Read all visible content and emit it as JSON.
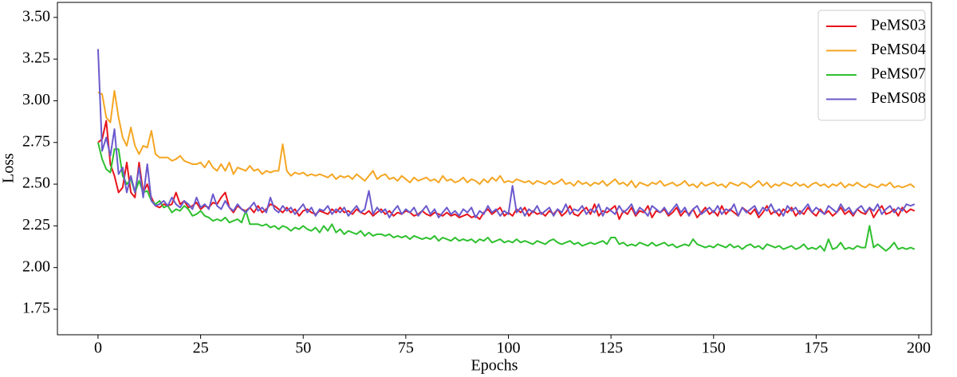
{
  "chart_data": {
    "type": "line",
    "xlabel": "Epochs",
    "ylabel": "Loss",
    "x": [
      0,
      1,
      2,
      3,
      4,
      5,
      6,
      7,
      8,
      9,
      10,
      11,
      12,
      13,
      14,
      15,
      16,
      17,
      18,
      19,
      20,
      21,
      22,
      23,
      24,
      25,
      26,
      27,
      28,
      29,
      30,
      31,
      32,
      33,
      34,
      35,
      36,
      37,
      38,
      39,
      40,
      41,
      42,
      43,
      44,
      45,
      46,
      47,
      48,
      49,
      50,
      51,
      52,
      53,
      54,
      55,
      56,
      57,
      58,
      59,
      60,
      61,
      62,
      63,
      64,
      65,
      66,
      67,
      68,
      69,
      70,
      71,
      72,
      73,
      74,
      75,
      76,
      77,
      78,
      79,
      80,
      81,
      82,
      83,
      84,
      85,
      86,
      87,
      88,
      89,
      90,
      91,
      92,
      93,
      94,
      95,
      96,
      97,
      98,
      99,
      100,
      101,
      102,
      103,
      104,
      105,
      106,
      107,
      108,
      109,
      110,
      111,
      112,
      113,
      114,
      115,
      116,
      117,
      118,
      119,
      120,
      121,
      122,
      123,
      124,
      125,
      126,
      127,
      128,
      129,
      130,
      131,
      132,
      133,
      134,
      135,
      136,
      137,
      138,
      139,
      140,
      141,
      142,
      143,
      144,
      145,
      146,
      147,
      148,
      149,
      150,
      151,
      152,
      153,
      154,
      155,
      156,
      157,
      158,
      159,
      160,
      161,
      162,
      163,
      164,
      165,
      166,
      167,
      168,
      169,
      170,
      171,
      172,
      173,
      174,
      175,
      176,
      177,
      178,
      179,
      180,
      181,
      182,
      183,
      184,
      185,
      186,
      187,
      188,
      189,
      190,
      191,
      192,
      193,
      194,
      195,
      196,
      197,
      198,
      199
    ],
    "series": [
      {
        "name": "PeMS03",
        "color": "#e8141b",
        "values": [
          2.75,
          2.77,
          2.88,
          2.62,
          2.55,
          2.45,
          2.48,
          2.63,
          2.45,
          2.42,
          2.63,
          2.45,
          2.5,
          2.42,
          2.37,
          2.36,
          2.38,
          2.37,
          2.38,
          2.45,
          2.38,
          2.4,
          2.36,
          2.37,
          2.39,
          2.35,
          2.37,
          2.36,
          2.39,
          2.38,
          2.42,
          2.45,
          2.36,
          2.33,
          2.37,
          2.35,
          2.34,
          2.36,
          2.33,
          2.37,
          2.33,
          2.35,
          2.38,
          2.37,
          2.35,
          2.33,
          2.36,
          2.33,
          2.35,
          2.31,
          2.34,
          2.35,
          2.33,
          2.32,
          2.34,
          2.33,
          2.32,
          2.35,
          2.33,
          2.36,
          2.33,
          2.34,
          2.32,
          2.35,
          2.33,
          2.32,
          2.34,
          2.31,
          2.33,
          2.35,
          2.32,
          2.34,
          2.31,
          2.33,
          2.32,
          2.34,
          2.33,
          2.31,
          2.32,
          2.34,
          2.32,
          2.31,
          2.33,
          2.32,
          2.31,
          2.33,
          2.31,
          2.32,
          2.3,
          2.31,
          2.32,
          2.3,
          2.31,
          2.29,
          2.33,
          2.35,
          2.32,
          2.34,
          2.36,
          2.31,
          2.33,
          2.31,
          2.35,
          2.33,
          2.36,
          2.31,
          2.34,
          2.32,
          2.33,
          2.31,
          2.34,
          2.32,
          2.35,
          2.31,
          2.33,
          2.37,
          2.32,
          2.31,
          2.34,
          2.36,
          2.32,
          2.38,
          2.31,
          2.34,
          2.33,
          2.35,
          2.37,
          2.29,
          2.34,
          2.32,
          2.36,
          2.31,
          2.34,
          2.33,
          2.37,
          2.3,
          2.34,
          2.33,
          2.35,
          2.31,
          2.33,
          2.36,
          2.31,
          2.34,
          2.32,
          2.35,
          2.3,
          2.33,
          2.36,
          2.32,
          2.34,
          2.31,
          2.37,
          2.32,
          2.35,
          2.33,
          2.31,
          2.36,
          2.34,
          2.32,
          2.35,
          2.3,
          2.33,
          2.37,
          2.32,
          2.34,
          2.31,
          2.35,
          2.33,
          2.36,
          2.31,
          2.34,
          2.32,
          2.36,
          2.33,
          2.31,
          2.35,
          2.32,
          2.34,
          2.31,
          2.33,
          2.36,
          2.32,
          2.34,
          2.31,
          2.35,
          2.33,
          2.32,
          2.36,
          2.3,
          2.34,
          2.37,
          2.32,
          2.33,
          2.35,
          2.31,
          2.36,
          2.33,
          2.35,
          2.34
        ]
      },
      {
        "name": "PeMS04",
        "color": "#f5a623",
        "values": [
          3.05,
          3.04,
          2.9,
          2.87,
          3.06,
          2.9,
          2.78,
          2.73,
          2.84,
          2.73,
          2.68,
          2.73,
          2.72,
          2.82,
          2.68,
          2.66,
          2.66,
          2.66,
          2.64,
          2.65,
          2.67,
          2.64,
          2.63,
          2.62,
          2.62,
          2.63,
          2.6,
          2.64,
          2.6,
          2.58,
          2.62,
          2.58,
          2.63,
          2.56,
          2.6,
          2.59,
          2.58,
          2.61,
          2.58,
          2.59,
          2.56,
          2.58,
          2.57,
          2.58,
          2.58,
          2.74,
          2.58,
          2.55,
          2.57,
          2.56,
          2.57,
          2.55,
          2.56,
          2.55,
          2.56,
          2.55,
          2.54,
          2.56,
          2.53,
          2.55,
          2.54,
          2.55,
          2.53,
          2.56,
          2.54,
          2.52,
          2.55,
          2.58,
          2.53,
          2.55,
          2.56,
          2.53,
          2.54,
          2.52,
          2.55,
          2.53,
          2.51,
          2.54,
          2.52,
          2.53,
          2.54,
          2.52,
          2.53,
          2.51,
          2.55,
          2.52,
          2.53,
          2.51,
          2.52,
          2.54,
          2.51,
          2.53,
          2.52,
          2.5,
          2.53,
          2.51,
          2.54,
          2.52,
          2.55,
          2.51,
          2.52,
          2.51,
          2.53,
          2.52,
          2.51,
          2.52,
          2.5,
          2.52,
          2.51,
          2.5,
          2.52,
          2.5,
          2.51,
          2.53,
          2.5,
          2.51,
          2.49,
          2.52,
          2.5,
          2.51,
          2.49,
          2.51,
          2.5,
          2.52,
          2.49,
          2.51,
          2.53,
          2.5,
          2.51,
          2.49,
          2.52,
          2.48,
          2.51,
          2.5,
          2.49,
          2.51,
          2.5,
          2.52,
          2.49,
          2.5,
          2.51,
          2.49,
          2.5,
          2.52,
          2.49,
          2.5,
          2.48,
          2.51,
          2.49,
          2.5,
          2.51,
          2.49,
          2.5,
          2.48,
          2.51,
          2.5,
          2.49,
          2.51,
          2.5,
          2.48,
          2.5,
          2.52,
          2.49,
          2.51,
          2.48,
          2.5,
          2.49,
          2.51,
          2.5,
          2.49,
          2.51,
          2.49,
          2.5,
          2.48,
          2.5,
          2.51,
          2.49,
          2.5,
          2.48,
          2.5,
          2.49,
          2.51,
          2.48,
          2.5,
          2.49,
          2.51,
          2.49,
          2.48,
          2.5,
          2.49,
          2.48,
          2.5,
          2.49,
          2.51,
          2.48,
          2.49,
          2.48,
          2.49,
          2.5,
          2.48
        ]
      },
      {
        "name": "PeMS07",
        "color": "#2ec02e",
        "values": [
          2.75,
          2.65,
          2.59,
          2.57,
          2.71,
          2.71,
          2.55,
          2.5,
          2.53,
          2.45,
          2.52,
          2.45,
          2.46,
          2.4,
          2.38,
          2.4,
          2.36,
          2.37,
          2.33,
          2.35,
          2.34,
          2.37,
          2.35,
          2.31,
          2.32,
          2.34,
          2.31,
          2.3,
          2.28,
          2.29,
          2.28,
          2.3,
          2.27,
          2.28,
          2.29,
          2.27,
          2.34,
          2.26,
          2.26,
          2.26,
          2.25,
          2.26,
          2.24,
          2.25,
          2.23,
          2.25,
          2.24,
          2.22,
          2.24,
          2.23,
          2.25,
          2.23,
          2.22,
          2.24,
          2.21,
          2.25,
          2.22,
          2.26,
          2.21,
          2.23,
          2.2,
          2.22,
          2.21,
          2.2,
          2.22,
          2.19,
          2.21,
          2.19,
          2.2,
          2.2,
          2.19,
          2.2,
          2.18,
          2.19,
          2.18,
          2.19,
          2.17,
          2.19,
          2.18,
          2.17,
          2.18,
          2.17,
          2.19,
          2.16,
          2.18,
          2.17,
          2.16,
          2.18,
          2.16,
          2.17,
          2.16,
          2.17,
          2.15,
          2.17,
          2.16,
          2.18,
          2.15,
          2.16,
          2.17,
          2.15,
          2.16,
          2.15,
          2.17,
          2.15,
          2.16,
          2.15,
          2.14,
          2.16,
          2.15,
          2.14,
          2.16,
          2.17,
          2.15,
          2.14,
          2.15,
          2.16,
          2.14,
          2.15,
          2.13,
          2.14,
          2.15,
          2.14,
          2.15,
          2.16,
          2.14,
          2.18,
          2.18,
          2.14,
          2.15,
          2.13,
          2.14,
          2.13,
          2.15,
          2.14,
          2.13,
          2.15,
          2.13,
          2.14,
          2.15,
          2.13,
          2.14,
          2.12,
          2.13,
          2.14,
          2.13,
          2.17,
          2.14,
          2.13,
          2.12,
          2.13,
          2.12,
          2.14,
          2.13,
          2.12,
          2.14,
          2.12,
          2.13,
          2.11,
          2.13,
          2.14,
          2.12,
          2.13,
          2.11,
          2.14,
          2.13,
          2.12,
          2.13,
          2.11,
          2.12,
          2.13,
          2.11,
          2.12,
          2.14,
          2.11,
          2.12,
          2.11,
          2.13,
          2.1,
          2.17,
          2.11,
          2.12,
          2.15,
          2.11,
          2.12,
          2.11,
          2.13,
          2.12,
          2.12,
          2.25,
          2.12,
          2.14,
          2.12,
          2.1,
          2.12,
          2.15,
          2.11,
          2.12,
          2.11,
          2.12,
          2.11
        ]
      },
      {
        "name": "PeMS08",
        "color": "#6a5acd",
        "values": [
          3.31,
          2.7,
          2.78,
          2.67,
          2.83,
          2.56,
          2.6,
          2.45,
          2.55,
          2.45,
          2.6,
          2.42,
          2.62,
          2.4,
          2.37,
          2.38,
          2.4,
          2.37,
          2.42,
          2.38,
          2.36,
          2.4,
          2.38,
          2.35,
          2.42,
          2.36,
          2.38,
          2.35,
          2.44,
          2.37,
          2.35,
          2.4,
          2.36,
          2.34,
          2.38,
          2.35,
          2.33,
          2.36,
          2.39,
          2.34,
          2.36,
          2.33,
          2.42,
          2.35,
          2.33,
          2.37,
          2.34,
          2.36,
          2.32,
          2.35,
          2.38,
          2.33,
          2.36,
          2.31,
          2.35,
          2.34,
          2.37,
          2.32,
          2.35,
          2.33,
          2.36,
          2.31,
          2.34,
          2.37,
          2.33,
          2.35,
          2.46,
          2.32,
          2.36,
          2.33,
          2.35,
          2.3,
          2.34,
          2.37,
          2.32,
          2.35,
          2.33,
          2.36,
          2.31,
          2.34,
          2.37,
          2.32,
          2.35,
          2.3,
          2.33,
          2.36,
          2.32,
          2.34,
          2.31,
          2.35,
          2.33,
          2.36,
          2.3,
          2.34,
          2.32,
          2.37,
          2.33,
          2.35,
          2.31,
          2.34,
          2.32,
          2.49,
          2.33,
          2.36,
          2.31,
          2.35,
          2.33,
          2.37,
          2.32,
          2.34,
          2.36,
          2.31,
          2.35,
          2.33,
          2.38,
          2.32,
          2.35,
          2.34,
          2.37,
          2.32,
          2.35,
          2.33,
          2.38,
          2.31,
          2.36,
          2.34,
          2.32,
          2.37,
          2.33,
          2.35,
          2.38,
          2.32,
          2.36,
          2.34,
          2.31,
          2.37,
          2.35,
          2.33,
          2.36,
          2.32,
          2.35,
          2.38,
          2.33,
          2.36,
          2.31,
          2.35,
          2.37,
          2.32,
          2.34,
          2.36,
          2.33,
          2.37,
          2.32,
          2.35,
          2.34,
          2.38,
          2.31,
          2.36,
          2.33,
          2.35,
          2.37,
          2.32,
          2.36,
          2.34,
          2.38,
          2.33,
          2.35,
          2.31,
          2.37,
          2.34,
          2.36,
          2.32,
          2.35,
          2.38,
          2.33,
          2.36,
          2.34,
          2.32,
          2.37,
          2.35,
          2.33,
          2.38,
          2.34,
          2.36,
          2.32,
          2.35,
          2.37,
          2.33,
          2.36,
          2.34,
          2.38,
          2.32,
          2.35,
          2.37,
          2.33,
          2.36,
          2.34,
          2.38,
          2.37,
          2.38
        ]
      }
    ],
    "xlim": [
      -9.9,
      203.1
    ],
    "ylim": [
      1.597,
      3.59
    ],
    "xticks": [
      0,
      25,
      50,
      75,
      100,
      125,
      150,
      175,
      200
    ],
    "yticks": [
      1.75,
      {
        "value": 2,
        "label": "2.00"
      },
      2.25,
      {
        "value": 2.5,
        "label": "2.50"
      },
      2.75,
      {
        "value": 3,
        "label": "3.00"
      },
      3.25,
      {
        "value": 3.5,
        "label": "3.50"
      }
    ],
    "legend": "upper right"
  }
}
